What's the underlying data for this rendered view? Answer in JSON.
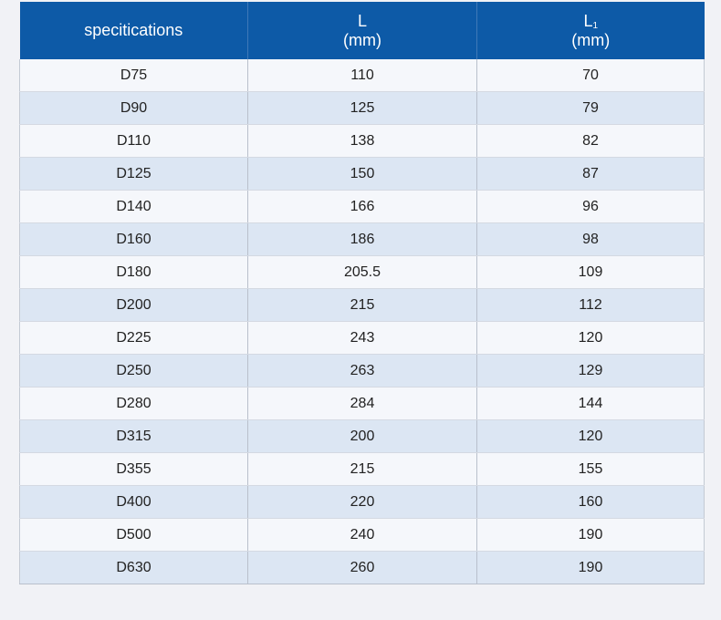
{
  "table": {
    "header": {
      "col1": "specitications",
      "col2_label": "L",
      "col2_unit": "(mm)",
      "col3_label": "L",
      "col3_sub": "1",
      "col3_unit": "(mm)"
    },
    "rows": [
      {
        "spec": "D75",
        "L": "110",
        "L1": "70"
      },
      {
        "spec": "D90",
        "L": "125",
        "L1": "79"
      },
      {
        "spec": "D110",
        "L": "138",
        "L1": "82"
      },
      {
        "spec": "D125",
        "L": "150",
        "L1": "87"
      },
      {
        "spec": "D140",
        "L": "166",
        "L1": "96"
      },
      {
        "spec": "D160",
        "L": "186",
        "L1": "98"
      },
      {
        "spec": "D180",
        "L": "205.5",
        "L1": "109"
      },
      {
        "spec": "D200",
        "L": "215",
        "L1": "112"
      },
      {
        "spec": "D225",
        "L": "243",
        "L1": "120"
      },
      {
        "spec": "D250",
        "L": "263",
        "L1": "129"
      },
      {
        "spec": "D280",
        "L": "284",
        "L1": "144"
      },
      {
        "spec": "D315",
        "L": "200",
        "L1": "120"
      },
      {
        "spec": "D355",
        "L": "215",
        "L1": "155"
      },
      {
        "spec": "D400",
        "L": "220",
        "L1": "160"
      },
      {
        "spec": "D500",
        "L": "240",
        "L1": "190"
      },
      {
        "spec": "D630",
        "L": "260",
        "L1": "190"
      }
    ]
  },
  "colors": {
    "header_bg": "#0d5aa7",
    "row_odd": "#f5f7fb",
    "row_even": "#dce6f3",
    "page_bg": "#f1f2f6"
  }
}
